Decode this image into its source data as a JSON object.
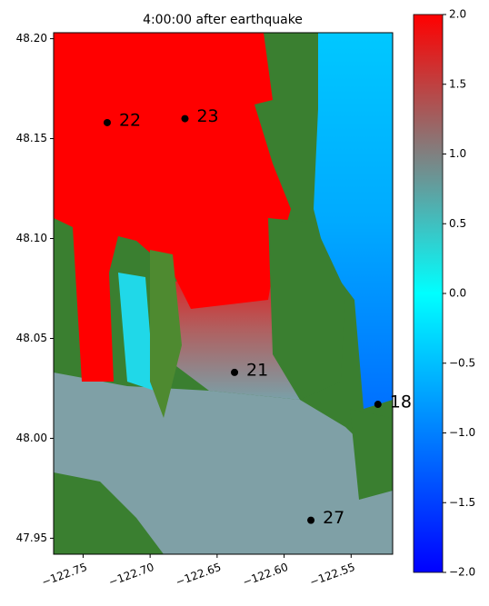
{
  "chart_data": {
    "type": "scatter",
    "title": "4:00:00 after earthquake",
    "x": [
      -122.732,
      -122.674,
      -122.637,
      -122.53,
      -122.58
    ],
    "y": [
      48.158,
      48.16,
      48.033,
      48.017,
      47.959
    ],
    "labels": [
      "22",
      "23",
      "21",
      "18",
      "27"
    ],
    "color": "#000000",
    "xlim": [
      -122.772,
      -122.519
    ],
    "ylim": [
      47.942,
      48.203
    ],
    "xticks": [
      {
        "value": -122.75,
        "label": "−122.75"
      },
      {
        "value": -122.7,
        "label": "−122.70"
      },
      {
        "value": -122.65,
        "label": "−122.65"
      },
      {
        "value": -122.6,
        "label": "−122.60"
      },
      {
        "value": -122.55,
        "label": "−122.55"
      }
    ],
    "yticks": [
      {
        "value": 47.95,
        "label": "47.95"
      },
      {
        "value": 48.0,
        "label": "48.00"
      },
      {
        "value": 48.05,
        "label": "48.05"
      },
      {
        "value": 48.1,
        "label": "48.10"
      },
      {
        "value": 48.15,
        "label": "48.15"
      },
      {
        "value": 48.2,
        "label": "48.20"
      }
    ],
    "colorbar": {
      "lim": [
        -2,
        2
      ],
      "ticks": [
        {
          "value": -2,
          "label": "−2.0"
        },
        {
          "value": -1.5,
          "label": "−1.5"
        },
        {
          "value": -1,
          "label": "−1.0"
        },
        {
          "value": -0.5,
          "label": "−0.5"
        },
        {
          "value": 0,
          "label": "0.0"
        },
        {
          "value": 0.5,
          "label": "0.5"
        },
        {
          "value": 1,
          "label": "1.0"
        },
        {
          "value": 1.5,
          "label": "1.5"
        },
        {
          "value": 2,
          "label": "2.0"
        }
      ]
    }
  }
}
